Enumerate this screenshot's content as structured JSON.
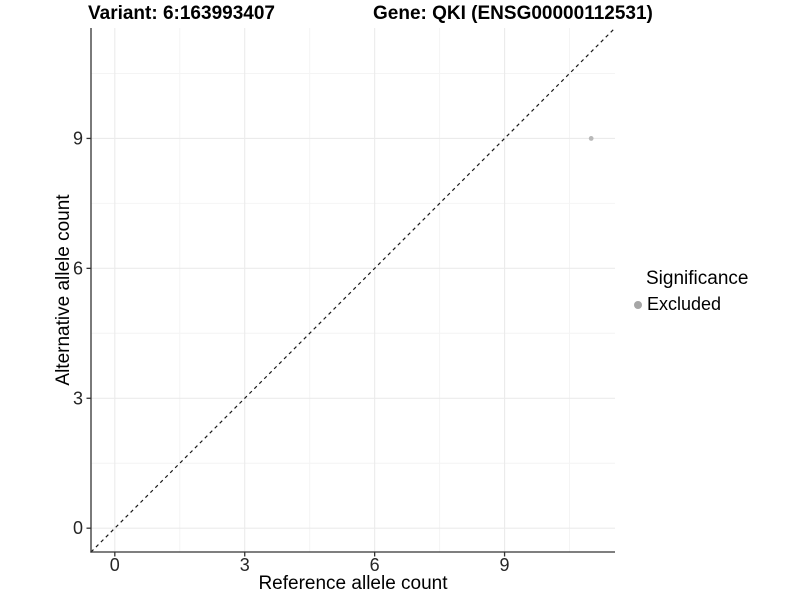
{
  "chart_data": {
    "type": "scatter",
    "title_left": "Variant: 6:163993407",
    "title_right": "Gene: QKI (ENSG00000112531)",
    "xlabel": "Reference allele count",
    "ylabel": "Alternative allele count",
    "x_ticks": [
      0,
      3,
      6,
      9
    ],
    "y_ticks": [
      0,
      3,
      6,
      9
    ],
    "xlim": [
      -0.55,
      11.55
    ],
    "ylim": [
      -0.55,
      11.55
    ],
    "grid": true,
    "points": [
      {
        "x": 11,
        "y": 9,
        "significance": "Excluded"
      }
    ],
    "identity_line": {
      "slope": 1,
      "intercept": 0,
      "style": "dashed",
      "color": "#1a1a1a"
    },
    "legend": {
      "position": "right",
      "title": "Significance",
      "items": [
        {
          "label": "Excluded",
          "color": "#a6a6a6"
        }
      ]
    },
    "colors": {
      "point_excluded": "#b9b9b9",
      "grid_major": "#ebebeb",
      "grid_minor": "#f4f4f4",
      "axis_line": "#333333",
      "tick_text": "#262626"
    }
  }
}
